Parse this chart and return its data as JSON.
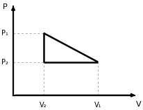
{
  "V2": 1.0,
  "V1": 2.8,
  "P1": 3.0,
  "P2": 1.6,
  "xlim": [
    -0.15,
    4.2
  ],
  "ylim": [
    -0.3,
    4.5
  ],
  "bg_color": "#ffffff",
  "line_color": "#000000",
  "dash_color": "#aaaaaa",
  "label_V1": "V₁",
  "label_V2": "V₂",
  "label_P1": "P₁",
  "label_P2": "P₂",
  "axis_label_x": "V",
  "axis_label_y": "P",
  "triangle_lw": 1.8,
  "dash_lw": 0.7,
  "axis_lw": 1.5,
  "fontsize_label": 7,
  "fontsize_axis": 8
}
